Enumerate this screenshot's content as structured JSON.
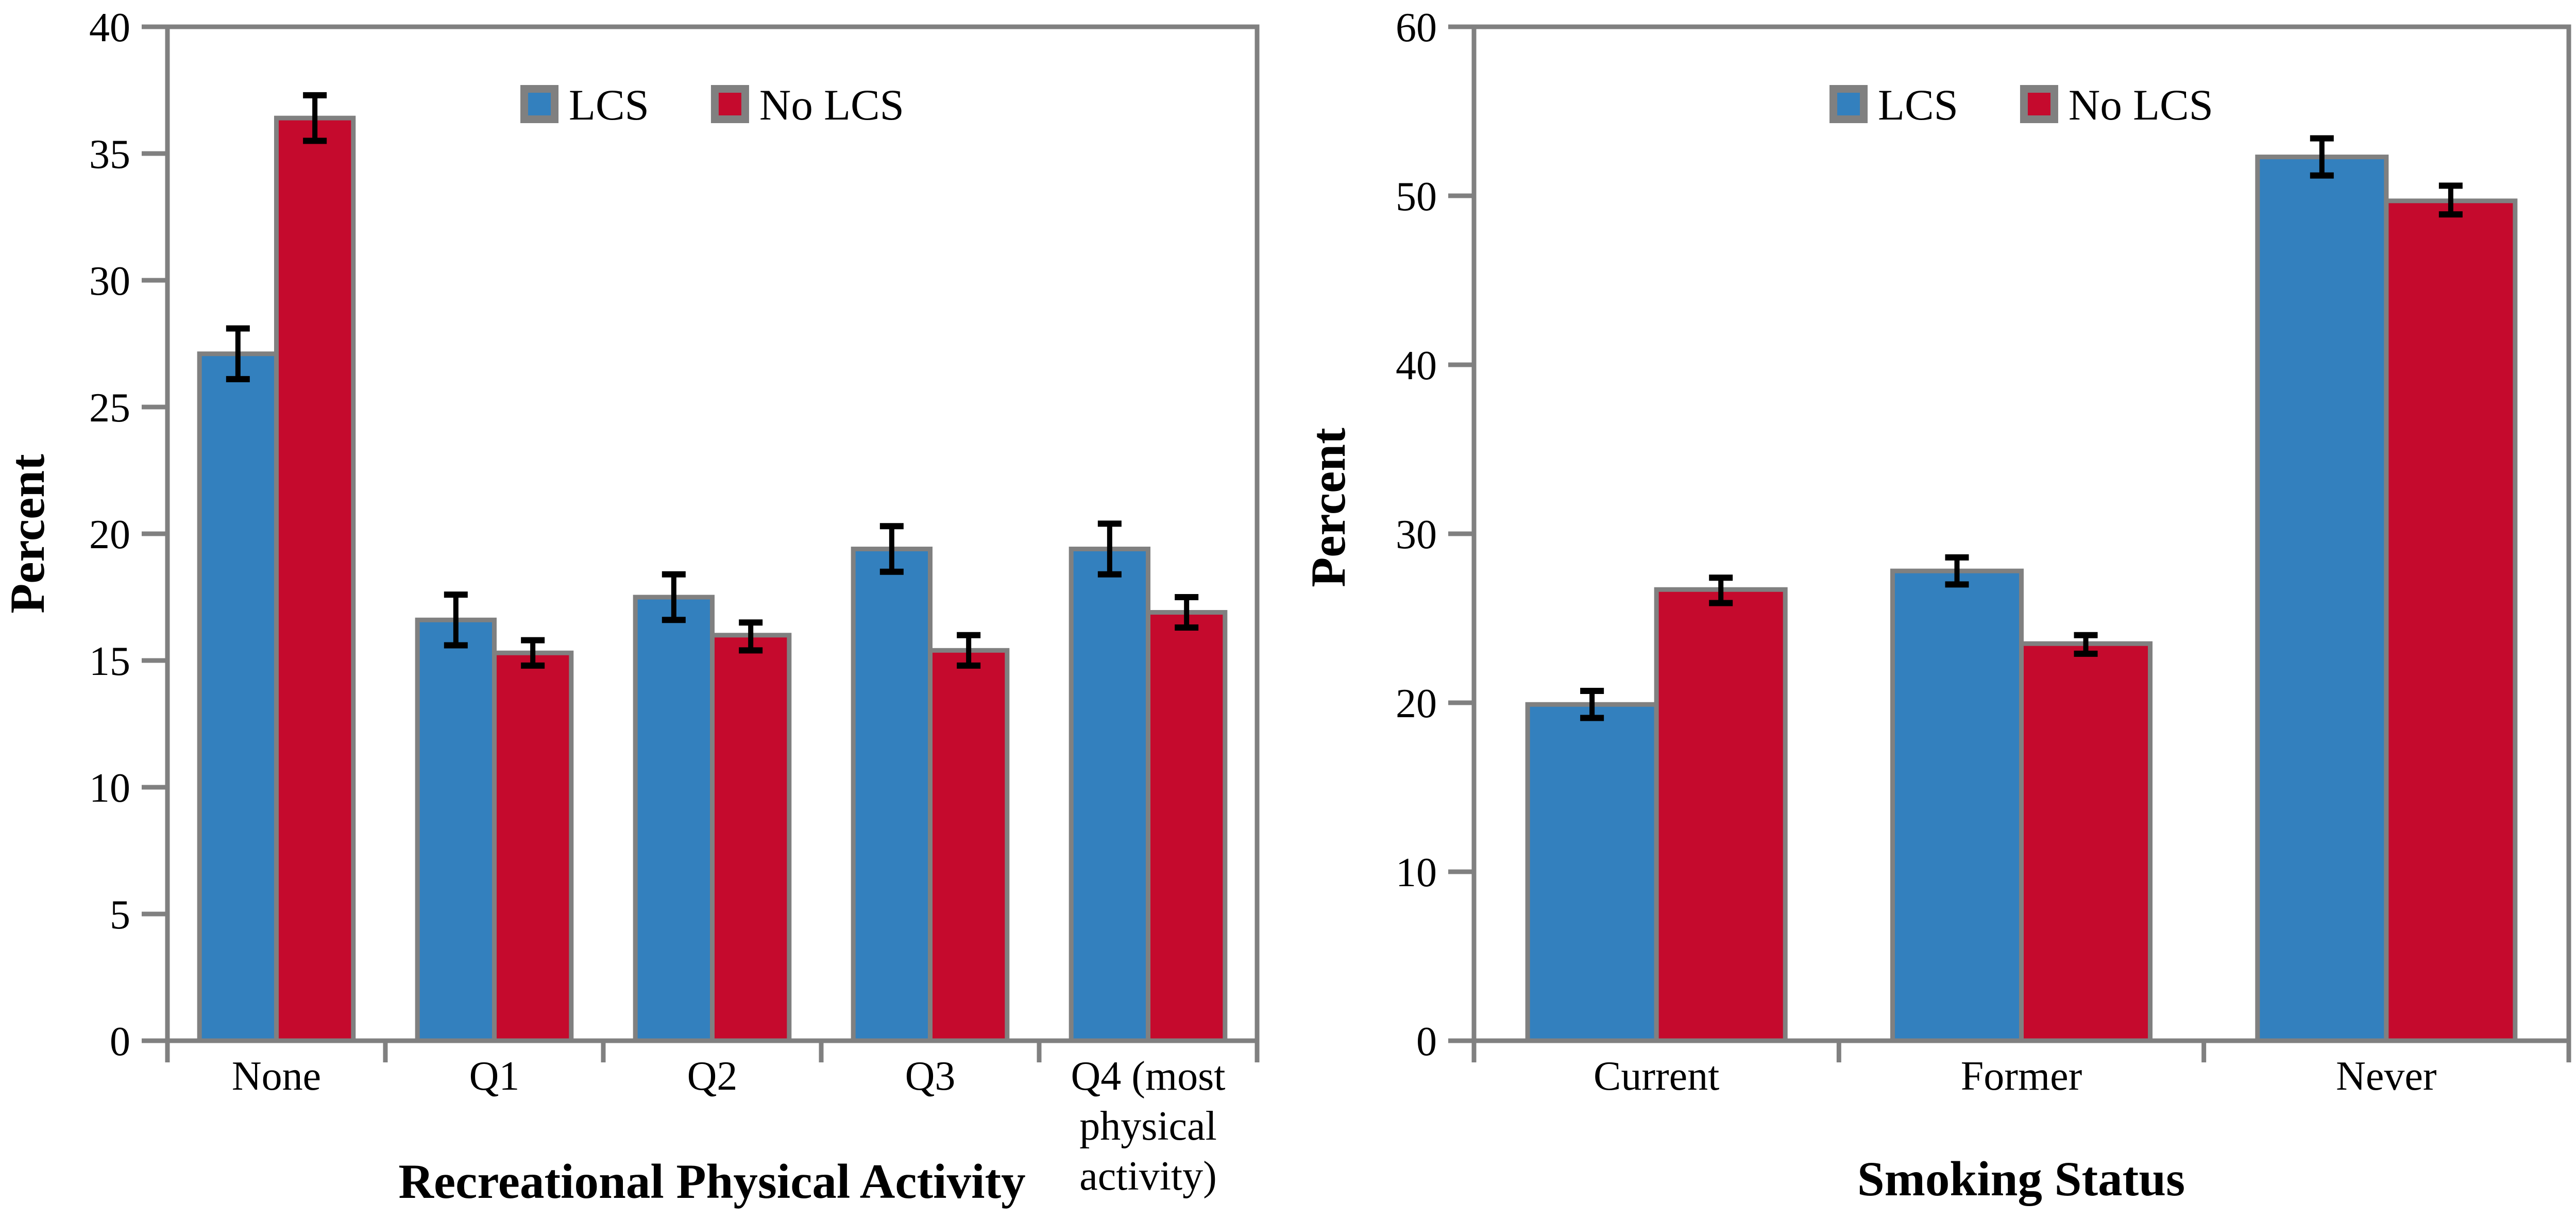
{
  "figure": {
    "background": "#ffffff",
    "description_left": "Grouped bar chart of percent by recreational physical activity for LCS vs No LCS",
    "description_right": "Grouped bar chart of percent by smoking status for LCS vs No LCS"
  },
  "styles": {
    "axis_color": "#808080",
    "bar_border_color": "#808080",
    "error_bar_color": "#000000",
    "legend_swatch_border": "#808080"
  },
  "legend": {
    "items": [
      {
        "label": "LCS",
        "color": "#3380BE"
      },
      {
        "label": "No LCS",
        "color": "#C50A2D"
      }
    ]
  },
  "chart_data": [
    {
      "type": "bar",
      "title": "",
      "xlabel": "Recreational Physical Activity",
      "ylabel": "Percent",
      "ylim": [
        0,
        40
      ],
      "ytick_step": 5,
      "grid": false,
      "legend_position": "top-center-inside",
      "categories": [
        "None",
        "Q1",
        "Q2",
        "Q3",
        "Q4 (most physical activity)"
      ],
      "category_display_lines": [
        [
          "None"
        ],
        [
          "Q1"
        ],
        [
          "Q2"
        ],
        [
          "Q3"
        ],
        [
          "Q4 (most",
          "physical",
          "activity)"
        ]
      ],
      "series": [
        {
          "name": "LCS",
          "color": "#3380BE",
          "values": [
            27.1,
            16.6,
            17.5,
            19.4,
            19.4
          ],
          "error_low": [
            26.1,
            15.6,
            16.6,
            18.5,
            18.4
          ],
          "error_high": [
            28.1,
            17.6,
            18.4,
            20.3,
            20.4
          ]
        },
        {
          "name": "No LCS",
          "color": "#C50A2D",
          "values": [
            36.4,
            15.3,
            16.0,
            15.4,
            16.9
          ],
          "error_low": [
            35.5,
            14.8,
            15.4,
            14.8,
            16.3
          ],
          "error_high": [
            37.3,
            15.8,
            16.5,
            16.0,
            17.5
          ]
        }
      ]
    },
    {
      "type": "bar",
      "title": "",
      "xlabel": "Smoking Status",
      "ylabel": "Percent",
      "ylim": [
        0,
        60
      ],
      "ytick_step": 10,
      "grid": false,
      "legend_position": "top-center-inside",
      "categories": [
        "Current",
        "Former",
        "Never"
      ],
      "category_display_lines": [
        [
          "Current"
        ],
        [
          "Former"
        ],
        [
          "Never"
        ]
      ],
      "series": [
        {
          "name": "LCS",
          "color": "#3380BE",
          "values": [
            19.9,
            27.8,
            52.3
          ],
          "error_low": [
            19.1,
            27.0,
            51.2
          ],
          "error_high": [
            20.7,
            28.6,
            53.4
          ]
        },
        {
          "name": "No LCS",
          "color": "#C50A2D",
          "values": [
            26.7,
            23.5,
            49.7
          ],
          "error_low": [
            25.9,
            22.9,
            48.9
          ],
          "error_high": [
            27.4,
            24.0,
            50.6
          ]
        }
      ]
    }
  ]
}
